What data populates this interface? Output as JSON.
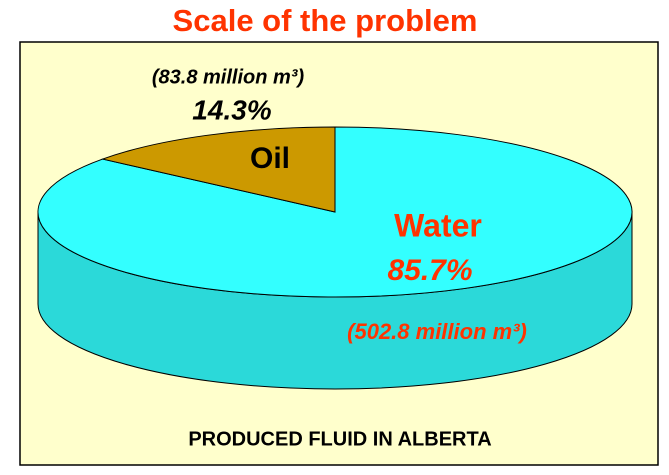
{
  "chart_data": {
    "type": "pie3d",
    "title": "Scale of the problem",
    "categories": [
      "Water",
      "Oil"
    ],
    "values": [
      85.7,
      14.3
    ],
    "value_labels": [
      "85.7%",
      "14.3%"
    ],
    "volume_labels": [
      "(502.8 million m³)",
      "(83.8 million m³)"
    ],
    "colors": [
      "#33ffff",
      "#cc9900"
    ],
    "label_colors": [
      "#ff3300",
      "#000000"
    ],
    "background": "#ffffcc",
    "caption": "PRODUCED FLUID IN ALBERTA"
  }
}
